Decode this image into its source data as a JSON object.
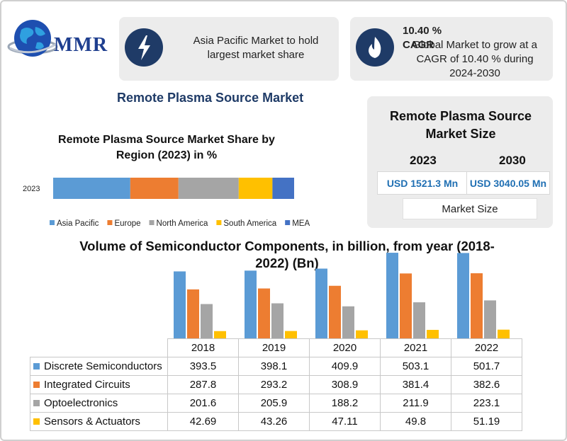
{
  "logo": {
    "text": "MMR"
  },
  "highlights": [
    {
      "icon": "lightning-icon",
      "text": "Asia Pacific Market to hold largest market share"
    },
    {
      "icon": "flame-icon",
      "title": "10.40 % CAGR",
      "text": "Global Market to grow at a CAGR of 10.40 % during 2024-2030"
    }
  ],
  "report_title": "Remote Plasma Source Market",
  "market_size": {
    "title": "Remote Plasma Source Market Size",
    "year_a": "2023",
    "year_b": "2030",
    "value_a": "USD 1521.3 Mn",
    "value_b": "USD 3040.05 Mn",
    "caption": "Market Size"
  },
  "chart_data": [
    {
      "type": "bar",
      "orientation": "horizontal",
      "stacked": true,
      "title": "Remote Plasma Source Market Share by Region (2023) in %",
      "categories": [
        "2023"
      ],
      "series": [
        {
          "name": "Asia Pacific",
          "color": "#5b9bd5",
          "values": [
            32
          ]
        },
        {
          "name": "Europe",
          "color": "#ed7d31",
          "values": [
            20
          ]
        },
        {
          "name": "North America",
          "color": "#a5a5a5",
          "values": [
            25
          ]
        },
        {
          "name": "South America",
          "color": "#ffc000",
          "values": [
            14
          ]
        },
        {
          "name": "MEA",
          "color": "#4472c4",
          "values": [
            9
          ]
        }
      ],
      "legend_position": "bottom",
      "grid": false
    },
    {
      "type": "bar",
      "title": "Volume of Semiconductor Components, in billion, from year (2018-2022) (Bn)",
      "categories": [
        "2018",
        "2019",
        "2020",
        "2021",
        "2022"
      ],
      "series": [
        {
          "name": "Discrete Semiconductors",
          "color": "#5b9bd5",
          "values": [
            393.5,
            398.1,
            409.9,
            503.1,
            501.7
          ]
        },
        {
          "name": "Integrated Circuits",
          "color": "#ed7d31",
          "values": [
            287.8,
            293.2,
            308.9,
            381.4,
            382.6
          ]
        },
        {
          "name": "Optoelectronics",
          "color": "#a5a5a5",
          "values": [
            201.6,
            205.9,
            188.2,
            211.9,
            223.1
          ]
        },
        {
          "name": "Sensors & Actuators",
          "color": "#ffc000",
          "values": [
            42.69,
            43.26,
            47.11,
            49.8,
            51.19
          ]
        }
      ],
      "ylim": [
        0,
        520
      ],
      "grid": false,
      "legend_position": "table"
    }
  ],
  "table_values": [
    [
      "393.5",
      "398.1",
      "409.9",
      "503.1",
      "501.7"
    ],
    [
      "287.8",
      "293.2",
      "308.9",
      "381.4",
      "382.6"
    ],
    [
      "201.6",
      "205.9",
      "188.2",
      "211.9",
      "223.1"
    ],
    [
      "42.69",
      "43.26",
      "47.11",
      "49.8",
      "51.19"
    ]
  ]
}
